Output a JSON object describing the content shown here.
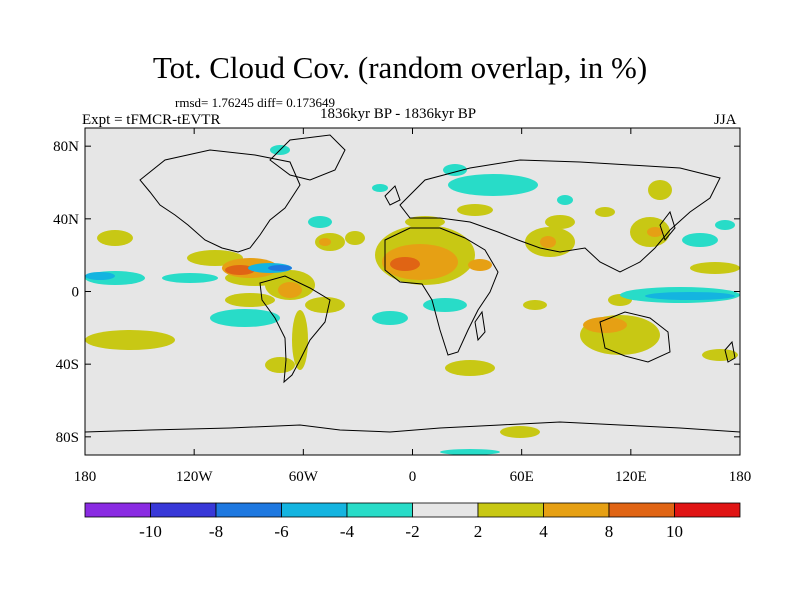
{
  "title": "Tot. Cloud Cov. (random overlap, in %)",
  "stats": "rmsd= 1.76245  diff= 0.173649",
  "experiment": "Expt = tFMCR-tEVTR",
  "period": "1836kyr BP - 1836kyr BP",
  "season": "JJA",
  "map": {
    "background_color": "#e6e6e6",
    "lat_range": [
      -90,
      90
    ],
    "lon_range": [
      -180,
      180
    ],
    "lat_ticks": [
      {
        "value": 80,
        "label": "80N"
      },
      {
        "value": 40,
        "label": "40N"
      },
      {
        "value": 0,
        "label": "0"
      },
      {
        "value": -40,
        "label": "40S"
      },
      {
        "value": -80,
        "label": "80S"
      }
    ],
    "lon_ticks": [
      {
        "value": -180,
        "label": "180"
      },
      {
        "value": -120,
        "label": "120W"
      },
      {
        "value": -60,
        "label": "60W"
      },
      {
        "value": 0,
        "label": "0"
      },
      {
        "value": 60,
        "label": "60E"
      },
      {
        "value": 120,
        "label": "120E"
      },
      {
        "value": 180,
        "label": "180"
      }
    ]
  },
  "colorbar": {
    "colors": [
      "#8a2be2",
      "#3838d8",
      "#1e78e0",
      "#14b4e0",
      "#28dcc8",
      "#e6e6e6",
      "#c8c814",
      "#e6a014",
      "#e06414",
      "#e01414"
    ],
    "labels": [
      "-10",
      "-8",
      "-6",
      "-4",
      "-2",
      "2",
      "4",
      "8",
      "10"
    ]
  }
}
